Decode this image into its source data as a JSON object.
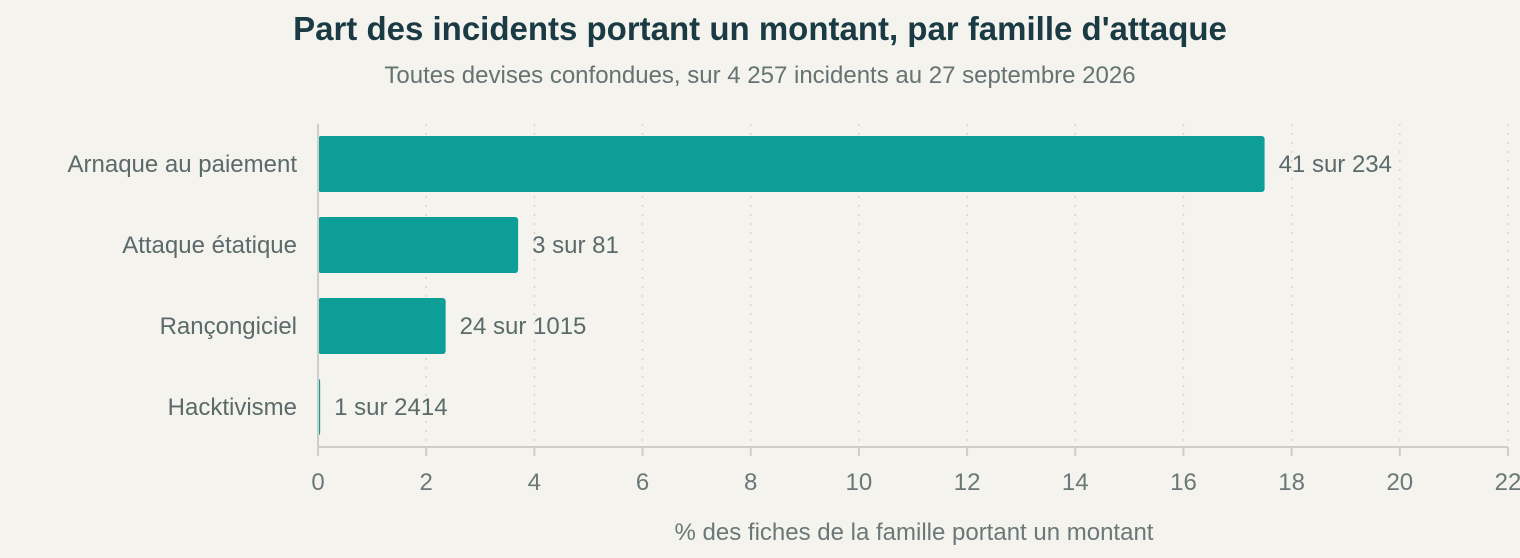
{
  "chart_data": {
    "type": "bar",
    "orientation": "horizontal",
    "title": "Part des incidents portant un montant, par famille d'attaque",
    "subtitle": "Toutes devises confondues, sur 4 257 incidents au 27 septembre 2026",
    "xlabel": "% des fiches de la famille portant un montant",
    "ylabel": "",
    "xlim": [
      0,
      22
    ],
    "xticks": [
      0,
      2,
      4,
      6,
      8,
      10,
      12,
      14,
      16,
      18,
      20,
      22
    ],
    "categories": [
      "Arnaque au paiement",
      "Attaque étatique",
      "Rançongiciel",
      "Hacktivisme"
    ],
    "values": [
      17.5,
      3.7,
      2.36,
      0.04
    ],
    "data_labels": [
      "41 sur 234",
      "3 sur 81",
      "24 sur 1015",
      "1 sur 2414"
    ],
    "bar_color": "#0e9e98",
    "grid": "vertical dotted"
  }
}
